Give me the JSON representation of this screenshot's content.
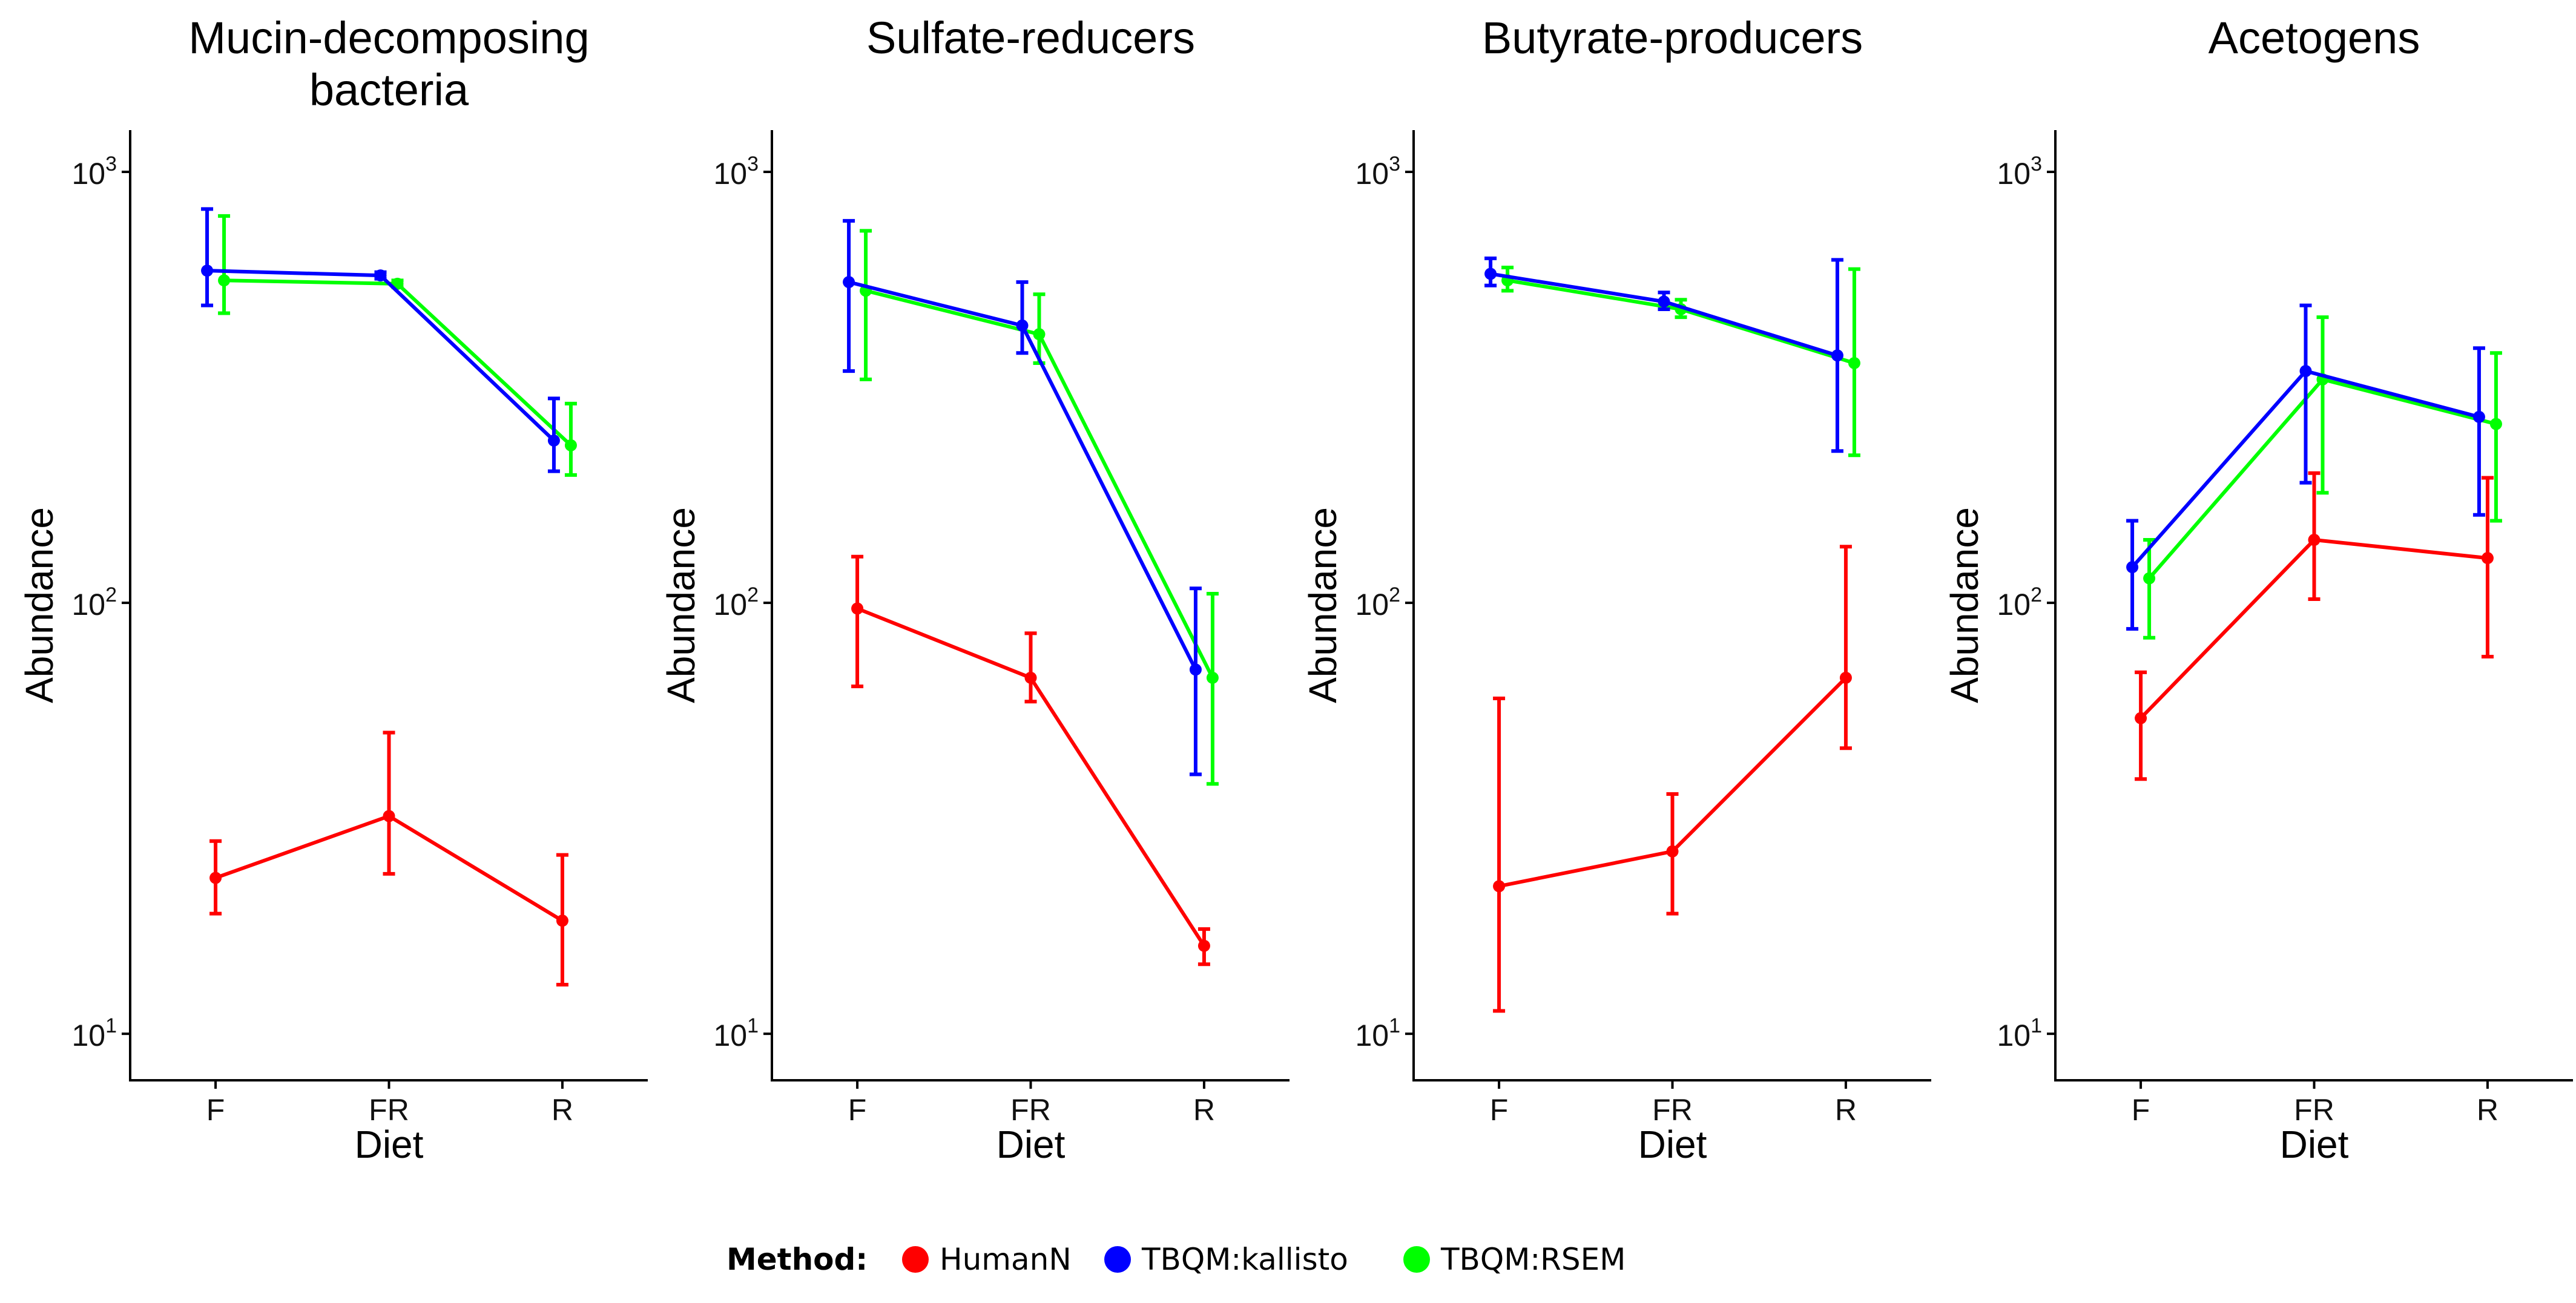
{
  "legend": {
    "title": "Method:",
    "entries": [
      {
        "label": "HumanN",
        "color": "#ff0000"
      },
      {
        "label": "TBQM:kallisto",
        "color": "#0000ff"
      },
      {
        "label": "TBQM:RSEM",
        "color": "#00ff00"
      }
    ]
  },
  "chart_data": [
    {
      "type": "line",
      "title_lines": [
        "Mucin-decomposing",
        "bacteria"
      ],
      "xlabel": "Diet",
      "ylabel": "Abundance",
      "categories": [
        "F",
        "FR",
        "R"
      ],
      "y_scale": "log10",
      "ylim": [
        7.8,
        1250
      ],
      "y_ticks": [
        {
          "value": 10,
          "base": "10",
          "exp": "1"
        },
        {
          "value": 100,
          "base": "10",
          "exp": "2"
        },
        {
          "value": 1000,
          "base": "10",
          "exp": "3"
        }
      ],
      "grid": false,
      "series": [
        {
          "name": "HumanN",
          "color": "#ff0000",
          "values": [
            23,
            32,
            18.3
          ],
          "lower": [
            19,
            23.5,
            13
          ],
          "upper": [
            28,
            50,
            26
          ]
        },
        {
          "name": "TBQM:kallisto",
          "color": "#0000ff",
          "values": [
            590,
            575,
            238
          ],
          "lower": [
            490,
            565,
            202
          ],
          "upper": [
            820,
            585,
            298
          ]
        },
        {
          "name": "TBQM:RSEM",
          "color": "#00ff00",
          "values": [
            560,
            550,
            232
          ],
          "lower": [
            470,
            540,
            198
          ],
          "upper": [
            790,
            560,
            290
          ]
        }
      ]
    },
    {
      "type": "line",
      "title_lines": [
        "Sulfate-reducers"
      ],
      "xlabel": "Diet",
      "ylabel": "Abundance",
      "categories": [
        "F",
        "FR",
        "R"
      ],
      "y_scale": "log10",
      "ylim": [
        7.8,
        1250
      ],
      "y_ticks": [
        {
          "value": 10,
          "base": "10",
          "exp": "1"
        },
        {
          "value": 100,
          "base": "10",
          "exp": "2"
        },
        {
          "value": 1000,
          "base": "10",
          "exp": "3"
        }
      ],
      "grid": false,
      "series": [
        {
          "name": "HumanN",
          "color": "#ff0000",
          "values": [
            97,
            67,
            16
          ],
          "lower": [
            64,
            59,
            14.5
          ],
          "upper": [
            128,
            85,
            17.5
          ]
        },
        {
          "name": "TBQM:kallisto",
          "color": "#0000ff",
          "values": [
            555,
            440,
            70
          ],
          "lower": [
            345,
            380,
            40
          ],
          "upper": [
            770,
            555,
            108
          ]
        },
        {
          "name": "TBQM:RSEM",
          "color": "#00ff00",
          "values": [
            530,
            420,
            67
          ],
          "lower": [
            330,
            360,
            38
          ],
          "upper": [
            730,
            520,
            105
          ]
        }
      ]
    },
    {
      "type": "line",
      "title_lines": [
        "Butyrate-producers"
      ],
      "xlabel": "Diet",
      "ylabel": "Abundance",
      "categories": [
        "F",
        "FR",
        "R"
      ],
      "y_scale": "log10",
      "ylim": [
        7.8,
        1250
      ],
      "y_ticks": [
        {
          "value": 10,
          "base": "10",
          "exp": "1"
        },
        {
          "value": 100,
          "base": "10",
          "exp": "2"
        },
        {
          "value": 1000,
          "base": "10",
          "exp": "3"
        }
      ],
      "grid": false,
      "series": [
        {
          "name": "HumanN",
          "color": "#ff0000",
          "values": [
            22,
            26.5,
            67
          ],
          "lower": [
            11.3,
            19,
            46
          ],
          "upper": [
            60,
            36,
            135
          ]
        },
        {
          "name": "TBQM:kallisto",
          "color": "#0000ff",
          "values": [
            580,
            500,
            375
          ],
          "lower": [
            545,
            480,
            225
          ],
          "upper": [
            630,
            525,
            625
          ]
        },
        {
          "name": "TBQM:RSEM",
          "color": "#00ff00",
          "values": [
            560,
            480,
            360
          ],
          "lower": [
            530,
            460,
            220
          ],
          "upper": [
            600,
            505,
            595
          ]
        }
      ]
    },
    {
      "type": "line",
      "title_lines": [
        "Acetogens"
      ],
      "xlabel": "Diet",
      "ylabel": "Abundance",
      "categories": [
        "F",
        "FR",
        "R"
      ],
      "y_scale": "log10",
      "ylim": [
        7.8,
        1250
      ],
      "y_ticks": [
        {
          "value": 10,
          "base": "10",
          "exp": "1"
        },
        {
          "value": 100,
          "base": "10",
          "exp": "2"
        },
        {
          "value": 1000,
          "base": "10",
          "exp": "3"
        }
      ],
      "grid": false,
      "series": [
        {
          "name": "HumanN",
          "color": "#ff0000",
          "values": [
            54,
            140,
            127
          ],
          "lower": [
            39,
            102,
            75
          ],
          "upper": [
            69,
            200,
            195
          ]
        },
        {
          "name": "TBQM:kallisto",
          "color": "#0000ff",
          "values": [
            121,
            345,
            270
          ],
          "lower": [
            87,
            190,
            160
          ],
          "upper": [
            155,
            490,
            390
          ]
        },
        {
          "name": "TBQM:RSEM",
          "color": "#00ff00",
          "values": [
            114,
            330,
            260
          ],
          "lower": [
            83,
            180,
            155
          ],
          "upper": [
            140,
            460,
            380
          ]
        }
      ]
    }
  ]
}
